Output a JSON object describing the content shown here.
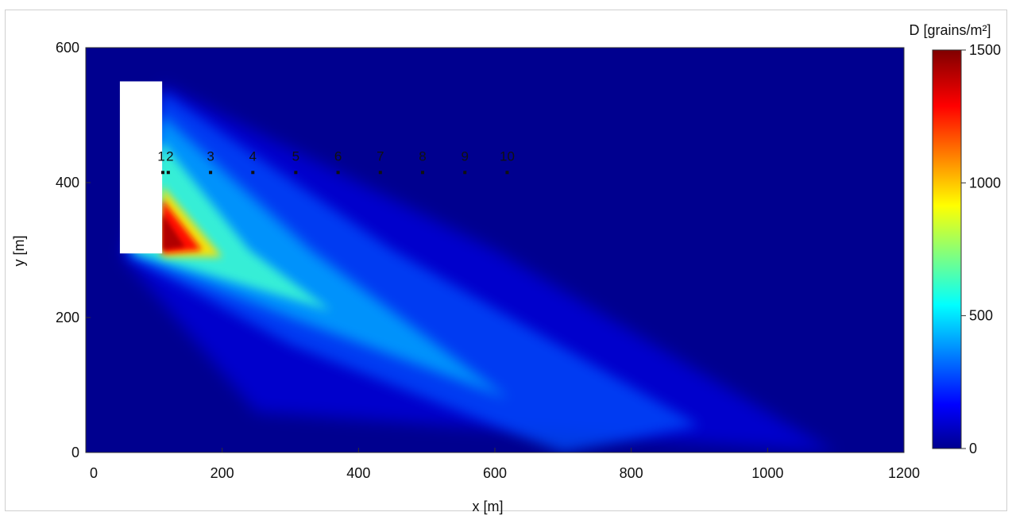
{
  "chart_data": {
    "type": "heatmap",
    "xlabel": "x [m]",
    "ylabel": "y [m]",
    "colorbar_label": "D [grains/m²]",
    "xlim": [
      0,
      1200
    ],
    "ylim": [
      0,
      600
    ],
    "xticks": [
      0,
      200,
      400,
      600,
      800,
      1000,
      1200
    ],
    "yticks": [
      0,
      200,
      400,
      600
    ],
    "colorbar_range": [
      0,
      1500
    ],
    "colorbar_ticks": [
      0,
      500,
      1000,
      1500
    ],
    "colormap": "jet",
    "source_block": {
      "x": [
        50,
        112
      ],
      "y": [
        295,
        550
      ]
    },
    "peak_value": 1500,
    "plume_peak_location": {
      "x": 120,
      "y": 310
    },
    "plume_tail_location": {
      "x": 1100,
      "y": 0
    },
    "sample_points": [
      {
        "label": "1",
        "x": 113,
        "y": 415
      },
      {
        "label": "2",
        "x": 121,
        "y": 415
      },
      {
        "label": "3",
        "x": 183,
        "y": 415
      },
      {
        "label": "4",
        "x": 245,
        "y": 415
      },
      {
        "label": "5",
        "x": 308,
        "y": 415
      },
      {
        "label": "6",
        "x": 370,
        "y": 415
      },
      {
        "label": "7",
        "x": 432,
        "y": 415
      },
      {
        "label": "8",
        "x": 494,
        "y": 415
      },
      {
        "label": "9",
        "x": 556,
        "y": 415
      },
      {
        "label": "10",
        "x": 618,
        "y": 415
      }
    ]
  }
}
